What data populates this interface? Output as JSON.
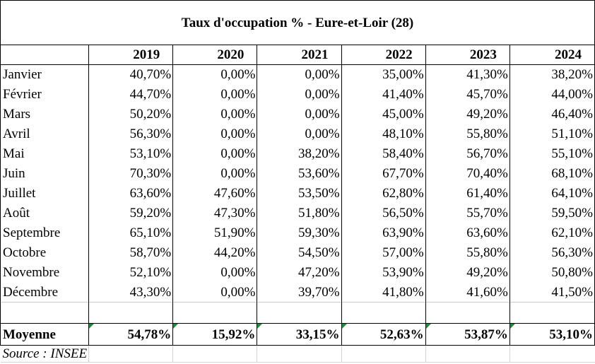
{
  "title": "Taux d'occupation % - Eure-et-Loir (28)",
  "years": [
    "2019",
    "2020",
    "2021",
    "2022",
    "2023",
    "2024"
  ],
  "rows": [
    {
      "month": "Janvier",
      "values": [
        "40,70%",
        "0,00%",
        "0,00%",
        "35,00%",
        "41,30%",
        "38,20%"
      ]
    },
    {
      "month": "Février",
      "values": [
        "44,70%",
        "0,00%",
        "0,00%",
        "41,40%",
        "45,70%",
        "44,00%"
      ]
    },
    {
      "month": "Mars",
      "values": [
        "50,20%",
        "0,00%",
        "0,00%",
        "45,00%",
        "49,20%",
        "46,40%"
      ]
    },
    {
      "month": "Avril",
      "values": [
        "56,30%",
        "0,00%",
        "0,00%",
        "48,10%",
        "55,80%",
        "51,10%"
      ]
    },
    {
      "month": "Mai",
      "values": [
        "53,10%",
        "0,00%",
        "38,20%",
        "58,40%",
        "56,70%",
        "55,10%"
      ]
    },
    {
      "month": "Juin",
      "values": [
        "70,30%",
        "0,00%",
        "53,60%",
        "67,70%",
        "70,40%",
        "68,10%"
      ]
    },
    {
      "month": "Juillet",
      "values": [
        "63,60%",
        "47,60%",
        "53,50%",
        "62,80%",
        "61,40%",
        "64,10%"
      ]
    },
    {
      "month": "Août",
      "values": [
        "59,20%",
        "47,30%",
        "51,80%",
        "56,50%",
        "55,70%",
        "59,50%"
      ]
    },
    {
      "month": "Septembre",
      "values": [
        "65,10%",
        "51,90%",
        "59,30%",
        "63,90%",
        "63,60%",
        "62,10%"
      ]
    },
    {
      "month": "Octobre",
      "values": [
        "58,70%",
        "44,20%",
        "54,50%",
        "57,00%",
        "55,80%",
        "56,30%"
      ]
    },
    {
      "month": "Novembre",
      "values": [
        "52,10%",
        "0,00%",
        "47,20%",
        "53,90%",
        "49,20%",
        "50,80%"
      ]
    },
    {
      "month": "Décembre",
      "values": [
        "43,30%",
        "0,00%",
        "39,70%",
        "41,80%",
        "41,60%",
        "41,50%"
      ]
    }
  ],
  "average": {
    "label": "Moyenne",
    "values": [
      "54,78%",
      "15,92%",
      "33,15%",
      "52,63%",
      "53,87%",
      "53,10%"
    ]
  },
  "source": "Source : INSEE",
  "colors": {
    "border": "#000000",
    "cell_note_marker": "#1f8a3a"
  }
}
